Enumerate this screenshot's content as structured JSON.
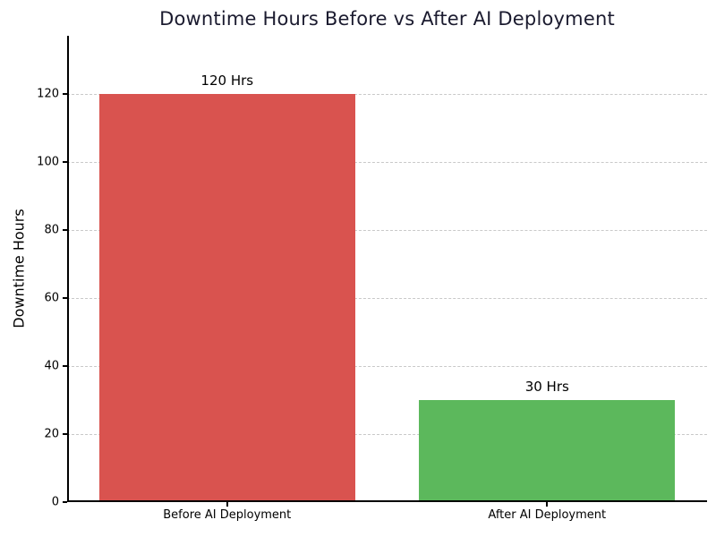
{
  "chart_data": {
    "type": "bar",
    "title": "Downtime Hours Before vs After AI Deployment",
    "xlabel": "",
    "ylabel": "Downtime Hours",
    "categories": [
      "Before AI Deployment",
      "After AI Deployment"
    ],
    "values": [
      120,
      30
    ],
    "bar_labels": [
      "120 Hrs",
      "30 Hrs"
    ],
    "bar_colors": [
      "#d9534f",
      "#5cb85c"
    ],
    "yticks": [
      0,
      20,
      40,
      60,
      80,
      100,
      120
    ],
    "ylim": [
      0,
      137
    ],
    "grid": "horizontal-dashed",
    "legend": "none"
  },
  "colors": {
    "title": "#1b1b2f",
    "grid": "#c9c9c9",
    "axis": "#000000",
    "tick_label": "#000000",
    "background": "#ffffff"
  }
}
